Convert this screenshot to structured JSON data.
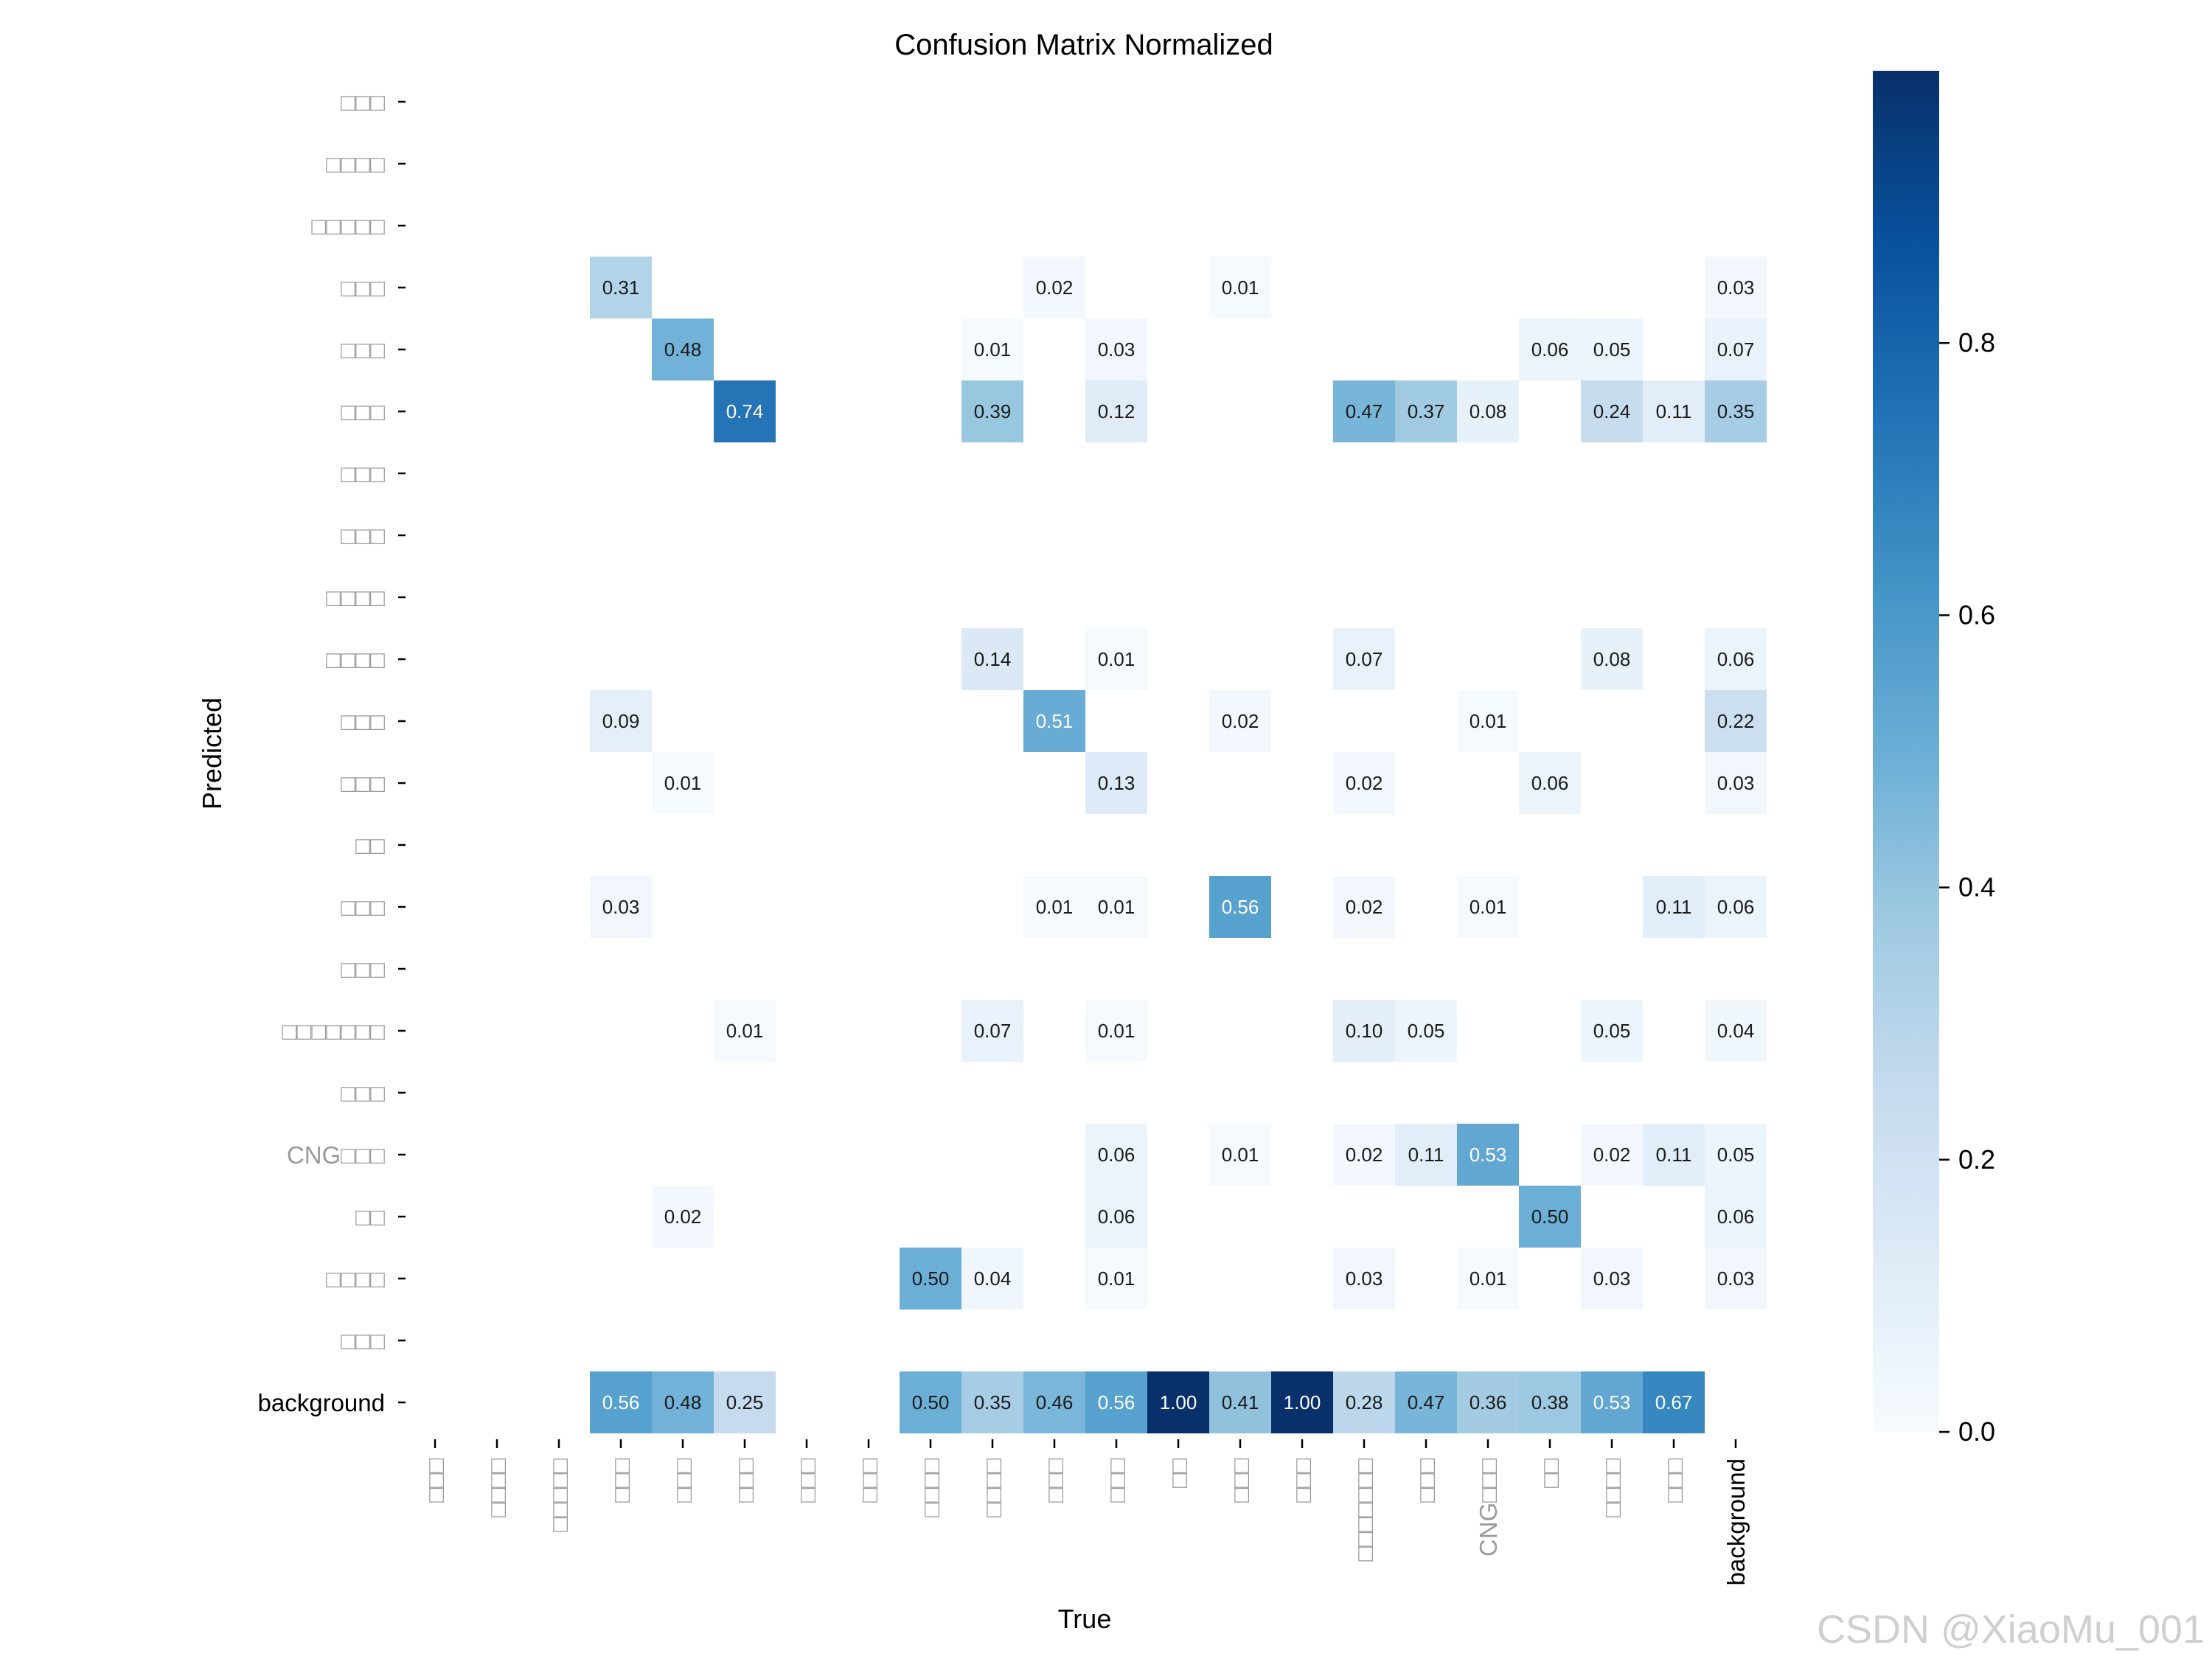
{
  "chart_data": {
    "type": "heatmap",
    "title": "Confusion Matrix Normalized",
    "xlabel": "True",
    "ylabel": "Predicted",
    "colormap": "Blues",
    "missing_glyph_labels": [
      "□□□",
      "□□□□",
      "□□□□□",
      "□□□",
      "□□□",
      "□□□",
      "□□□",
      "□□□",
      "□□□□",
      "□□□□",
      "□□□",
      "□□□",
      "□□",
      "□□□",
      "□□□",
      "□□□□□□□",
      "□□□",
      "CNG□□□",
      "□□",
      "□□□□",
      "□□□",
      "background"
    ],
    "row_labels": [
      "□□□",
      "□□□□",
      "□□□□□",
      "□□□",
      "□□□",
      "□□□",
      "□□□",
      "□□□",
      "□□□□",
      "□□□□",
      "□□□",
      "□□□",
      "□□",
      "□□□",
      "□□□",
      "□□□□□□□",
      "□□□",
      "CNG□□□",
      "□□",
      "□□□□",
      "□□□",
      "background"
    ],
    "col_labels": [
      "□□□",
      "□□□□",
      "□□□□□",
      "□□□",
      "□□□",
      "□□□",
      "□□□",
      "□□□",
      "□□□□",
      "□□□□",
      "□□□",
      "□□□",
      "□□",
      "□□□",
      "□□□",
      "□□□□□□□",
      "□□□",
      "CNG□□□",
      "□□",
      "□□□□",
      "□□□",
      "background"
    ],
    "cells": [
      {
        "r": 3,
        "c": 3,
        "v": 0.31
      },
      {
        "r": 3,
        "c": 10,
        "v": 0.02
      },
      {
        "r": 3,
        "c": 13,
        "v": 0.01
      },
      {
        "r": 3,
        "c": 21,
        "v": 0.03
      },
      {
        "r": 4,
        "c": 4,
        "v": 0.48
      },
      {
        "r": 4,
        "c": 9,
        "v": 0.01
      },
      {
        "r": 4,
        "c": 11,
        "v": 0.03
      },
      {
        "r": 4,
        "c": 18,
        "v": 0.06
      },
      {
        "r": 4,
        "c": 19,
        "v": 0.05
      },
      {
        "r": 4,
        "c": 21,
        "v": 0.07
      },
      {
        "r": 5,
        "c": 5,
        "v": 0.74
      },
      {
        "r": 5,
        "c": 9,
        "v": 0.39
      },
      {
        "r": 5,
        "c": 11,
        "v": 0.12
      },
      {
        "r": 5,
        "c": 15,
        "v": 0.47
      },
      {
        "r": 5,
        "c": 16,
        "v": 0.37
      },
      {
        "r": 5,
        "c": 17,
        "v": 0.08
      },
      {
        "r": 5,
        "c": 19,
        "v": 0.24
      },
      {
        "r": 5,
        "c": 20,
        "v": 0.11
      },
      {
        "r": 5,
        "c": 21,
        "v": 0.35
      },
      {
        "r": 9,
        "c": 9,
        "v": 0.14
      },
      {
        "r": 9,
        "c": 11,
        "v": 0.01
      },
      {
        "r": 9,
        "c": 15,
        "v": 0.07
      },
      {
        "r": 9,
        "c": 19,
        "v": 0.08
      },
      {
        "r": 9,
        "c": 21,
        "v": 0.06
      },
      {
        "r": 10,
        "c": 3,
        "v": 0.09
      },
      {
        "r": 10,
        "c": 10,
        "v": 0.51
      },
      {
        "r": 10,
        "c": 13,
        "v": 0.02
      },
      {
        "r": 10,
        "c": 17,
        "v": 0.01
      },
      {
        "r": 10,
        "c": 21,
        "v": 0.22
      },
      {
        "r": 11,
        "c": 4,
        "v": 0.01
      },
      {
        "r": 11,
        "c": 11,
        "v": 0.13
      },
      {
        "r": 11,
        "c": 15,
        "v": 0.02
      },
      {
        "r": 11,
        "c": 18,
        "v": 0.06
      },
      {
        "r": 11,
        "c": 21,
        "v": 0.03
      },
      {
        "r": 13,
        "c": 3,
        "v": 0.03
      },
      {
        "r": 13,
        "c": 10,
        "v": 0.01
      },
      {
        "r": 13,
        "c": 11,
        "v": 0.01
      },
      {
        "r": 13,
        "c": 13,
        "v": 0.56
      },
      {
        "r": 13,
        "c": 15,
        "v": 0.02
      },
      {
        "r": 13,
        "c": 17,
        "v": 0.01
      },
      {
        "r": 13,
        "c": 20,
        "v": 0.11
      },
      {
        "r": 13,
        "c": 21,
        "v": 0.06
      },
      {
        "r": 15,
        "c": 5,
        "v": 0.01
      },
      {
        "r": 15,
        "c": 9,
        "v": 0.07
      },
      {
        "r": 15,
        "c": 11,
        "v": 0.01
      },
      {
        "r": 15,
        "c": 15,
        "v": 0.1
      },
      {
        "r": 15,
        "c": 16,
        "v": 0.05
      },
      {
        "r": 15,
        "c": 19,
        "v": 0.05
      },
      {
        "r": 15,
        "c": 21,
        "v": 0.04
      },
      {
        "r": 17,
        "c": 11,
        "v": 0.06
      },
      {
        "r": 17,
        "c": 13,
        "v": 0.01
      },
      {
        "r": 17,
        "c": 15,
        "v": 0.02
      },
      {
        "r": 17,
        "c": 16,
        "v": 0.11
      },
      {
        "r": 17,
        "c": 17,
        "v": 0.53
      },
      {
        "r": 17,
        "c": 19,
        "v": 0.02
      },
      {
        "r": 17,
        "c": 20,
        "v": 0.11
      },
      {
        "r": 17,
        "c": 21,
        "v": 0.05
      },
      {
        "r": 18,
        "c": 4,
        "v": 0.02
      },
      {
        "r": 18,
        "c": 11,
        "v": 0.06
      },
      {
        "r": 18,
        "c": 18,
        "v": 0.5
      },
      {
        "r": 18,
        "c": 21,
        "v": 0.06
      },
      {
        "r": 19,
        "c": 8,
        "v": 0.5
      },
      {
        "r": 19,
        "c": 9,
        "v": 0.04
      },
      {
        "r": 19,
        "c": 11,
        "v": 0.01
      },
      {
        "r": 19,
        "c": 15,
        "v": 0.03
      },
      {
        "r": 19,
        "c": 17,
        "v": 0.01
      },
      {
        "r": 19,
        "c": 19,
        "v": 0.03
      },
      {
        "r": 19,
        "c": 21,
        "v": 0.03
      },
      {
        "r": 21,
        "c": 3,
        "v": 0.56
      },
      {
        "r": 21,
        "c": 4,
        "v": 0.48
      },
      {
        "r": 21,
        "c": 5,
        "v": 0.25
      },
      {
        "r": 21,
        "c": 8,
        "v": 0.5
      },
      {
        "r": 21,
        "c": 9,
        "v": 0.35
      },
      {
        "r": 21,
        "c": 10,
        "v": 0.46
      },
      {
        "r": 21,
        "c": 11,
        "v": 0.56
      },
      {
        "r": 21,
        "c": 12,
        "v": 1.0
      },
      {
        "r": 21,
        "c": 13,
        "v": 0.41
      },
      {
        "r": 21,
        "c": 14,
        "v": 1.0
      },
      {
        "r": 21,
        "c": 15,
        "v": 0.28
      },
      {
        "r": 21,
        "c": 16,
        "v": 0.47
      },
      {
        "r": 21,
        "c": 17,
        "v": 0.36
      },
      {
        "r": 21,
        "c": 18,
        "v": 0.38
      },
      {
        "r": 21,
        "c": 19,
        "v": 0.53
      },
      {
        "r": 21,
        "c": 20,
        "v": 0.67
      }
    ],
    "colorbar": {
      "range": [
        0.0,
        1.0
      ],
      "ticks": [
        0.0,
        0.2,
        0.4,
        0.6,
        0.8
      ],
      "tick_labels": [
        "0.0",
        "0.2",
        "0.4",
        "0.6",
        "0.8"
      ]
    },
    "grid": false
  },
  "watermark": "CSDN @XiaoMu_001"
}
